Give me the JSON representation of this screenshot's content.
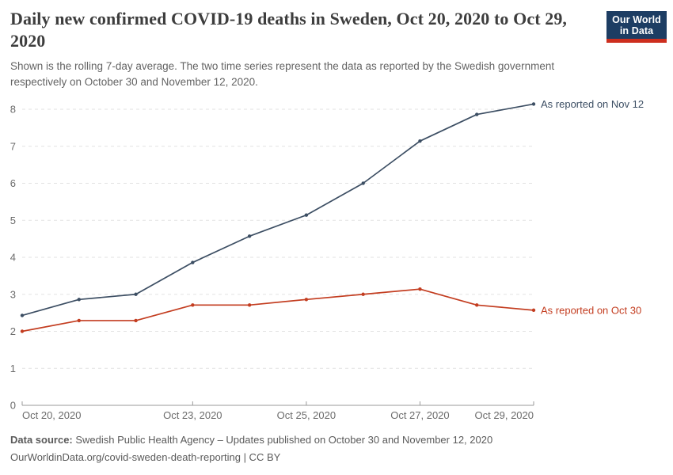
{
  "header": {
    "title": "Daily new confirmed COVID-19 deaths in Sweden, Oct 20, 2020 to Oct 29, 2020",
    "subtitle": "Shown is the rolling 7-day average. The two time series represent the data as reported by the Swedish government respectively on October 30 and November 12, 2020.",
    "logo": {
      "line1": "Our World",
      "line2": "in Data"
    }
  },
  "chart_data": {
    "type": "line",
    "title": "Daily new confirmed COVID-19 deaths in Sweden, Oct 20, 2020 to Oct 29, 2020",
    "x": [
      "Oct 20, 2020",
      "Oct 21, 2020",
      "Oct 22, 2020",
      "Oct 23, 2020",
      "Oct 24, 2020",
      "Oct 25, 2020",
      "Oct 26, 2020",
      "Oct 27, 2020",
      "Oct 28, 2020",
      "Oct 29, 2020"
    ],
    "series": [
      {
        "name": "As reported on Nov 12",
        "color": "#3C4E63",
        "values": [
          2.43,
          2.86,
          3.0,
          3.86,
          4.57,
          5.14,
          6.0,
          7.14,
          7.86,
          8.14
        ]
      },
      {
        "name": "As reported on Oct 30",
        "color": "#C33D20",
        "values": [
          2.0,
          2.29,
          2.29,
          2.71,
          2.71,
          2.86,
          3.0,
          3.14,
          2.71,
          2.57
        ]
      }
    ],
    "xlabel": "",
    "ylabel": "",
    "ylim": [
      0,
      8.5
    ],
    "yticks": [
      0,
      1,
      2,
      3,
      4,
      5,
      6,
      7,
      8
    ],
    "xticks": [
      {
        "index": 0,
        "label": "Oct 20, 2020"
      },
      {
        "index": 3,
        "label": "Oct 23, 2020"
      },
      {
        "index": 5,
        "label": "Oct 25, 2020"
      },
      {
        "index": 7,
        "label": "Oct 27, 2020"
      },
      {
        "index": 9,
        "label": "Oct 29, 2020"
      }
    ],
    "grid": "horizontal-dashed",
    "legend": "labels-at-line-end"
  },
  "footer": {
    "source_label": "Data source:",
    "source_text": " Swedish Public Health Agency – Updates published on October 30 and November 12, 2020",
    "link_text": "OurWorldinData.org/covid-sweden-death-reporting | CC BY"
  },
  "colors": {
    "series_nov12": "#3C4E63",
    "series_oct30": "#C33D20",
    "logo_background": "#1D3D63",
    "logo_stripe": "#CD2E1E"
  }
}
